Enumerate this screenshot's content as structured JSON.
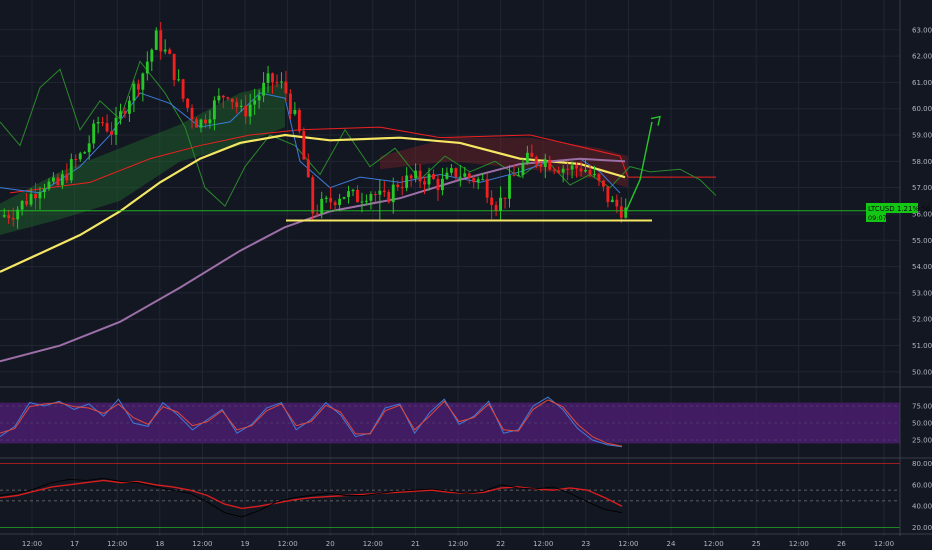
{
  "colors": {
    "background": "#131722",
    "grid": "#222633",
    "axis_text": "#b2b5be",
    "up": "#26c726",
    "down": "#ef2020",
    "ma_fast": "#f5e663",
    "ma_slow": "#9c6fa6",
    "cloud_green": "#1f6b2a",
    "cloud_red": "#6b1f24",
    "rsi_band": "#4b1d6e",
    "rsi_line": "#3d7bd9",
    "rsi_signal": "#e0493b",
    "osc_line": "#d81e1e",
    "osc_black": "#000000",
    "price_tag": "#15c715"
  },
  "price_tag": {
    "label": "LTCUSD 1.21% 56.12",
    "sub_label": "09:07"
  },
  "chart_data": [
    {
      "type": "line",
      "title": "",
      "series_kind": "candlestick",
      "y_ticks": [
        "63.00",
        "62.00",
        "61.00",
        "60.00",
        "59.00",
        "58.00",
        "57.00",
        "56.00",
        "55.00",
        "54.00",
        "53.00",
        "52.00",
        "51.00",
        "50.00"
      ],
      "ylim": [
        49.5,
        63.6
      ],
      "x_ticks": [
        "12:00",
        "17",
        "12:00",
        "18",
        "12:00",
        "19",
        "12:00",
        "20",
        "12:00",
        "21",
        "12:00",
        "22",
        "12:00",
        "23",
        "12:00",
        "24",
        "12:00",
        "25",
        "12:00",
        "26",
        "12:00"
      ],
      "candles_approx": {
        "open": [
          55.6,
          55.9,
          56.1,
          56.6,
          57.2,
          57.0,
          57.8,
          58.4,
          59.6,
          59.1,
          60.4,
          61.3,
          62.7,
          61.8,
          60.2,
          59.4,
          60.1,
          60.7,
          59.8,
          60.4,
          61.1,
          60.8,
          59.2,
          56.1,
          56.4,
          56.8,
          56.6,
          56.9,
          56.5,
          57.2,
          57.3,
          57.4,
          57.1,
          57.6,
          57.4,
          57.2,
          56.3,
          57.3,
          58.0,
          58.1,
          57.9,
          57.7,
          57.8,
          57.2,
          56.4
        ],
        "close": [
          55.9,
          56.1,
          56.6,
          57.2,
          57.0,
          57.8,
          58.4,
          59.6,
          59.1,
          60.4,
          61.3,
          62.7,
          61.8,
          60.2,
          59.4,
          60.1,
          60.7,
          59.8,
          60.4,
          61.1,
          60.8,
          59.2,
          56.1,
          56.4,
          56.8,
          56.6,
          56.9,
          56.5,
          57.2,
          57.3,
          57.4,
          57.1,
          57.6,
          57.4,
          57.2,
          56.3,
          57.3,
          58.0,
          58.1,
          57.9,
          57.7,
          57.8,
          57.2,
          56.4,
          56.1
        ]
      },
      "horizontal_levels": [
        {
          "name": "support",
          "value": 55.75
        },
        {
          "name": "last_price",
          "value": 56.12
        }
      ],
      "annotations": [
        "projected-path-arrow"
      ]
    },
    {
      "type": "line",
      "title": "",
      "indicator": "stochastic RSI",
      "y_ticks": [
        "75.00",
        "50.00",
        "25.00"
      ],
      "ylim": [
        0,
        100
      ],
      "band": [
        20,
        80
      ],
      "series": [
        {
          "values": [
            30,
            45,
            80,
            75,
            82,
            70,
            78,
            60,
            85,
            50,
            45,
            80,
            62,
            40,
            55,
            70,
            35,
            48,
            72,
            80,
            40,
            55,
            80,
            62,
            30,
            35,
            72,
            78,
            35,
            65,
            85,
            48,
            60,
            82,
            35,
            40,
            75,
            88,
            70,
            42,
            25,
            18,
            15
          ]
        },
        {
          "values": [
            35,
            42,
            74,
            78,
            80,
            74,
            72,
            64,
            78,
            58,
            48,
            74,
            66,
            46,
            52,
            68,
            40,
            46,
            68,
            78,
            46,
            52,
            76,
            66,
            34,
            34,
            68,
            76,
            40,
            60,
            82,
            52,
            58,
            78,
            40,
            38,
            70,
            84,
            74,
            48,
            30,
            20,
            16
          ]
        }
      ]
    },
    {
      "type": "line",
      "title": "",
      "indicator": "RSI",
      "y_ticks": [
        "80.00",
        "60.00",
        "40.00",
        "20.00"
      ],
      "ylim": [
        16,
        84
      ],
      "levels": [
        80,
        55,
        45,
        20
      ],
      "series": [
        {
          "values": [
            48,
            50,
            54,
            58,
            60,
            62,
            64,
            62,
            63,
            60,
            58,
            55,
            50,
            42,
            38,
            40,
            43,
            46,
            48,
            49,
            50,
            51,
            52,
            53,
            54,
            55,
            53,
            52,
            53,
            57,
            58,
            56,
            55,
            57,
            55,
            48,
            40
          ]
        },
        {
          "values": [
            50,
            52,
            56,
            62,
            65,
            64,
            66,
            63,
            62,
            58,
            55,
            52,
            44,
            34,
            30,
            36,
            44,
            48,
            50,
            52,
            50,
            50,
            52,
            54,
            55,
            56,
            54,
            52,
            54,
            60,
            57,
            56,
            58,
            52,
            44,
            37,
            34
          ]
        }
      ]
    }
  ]
}
